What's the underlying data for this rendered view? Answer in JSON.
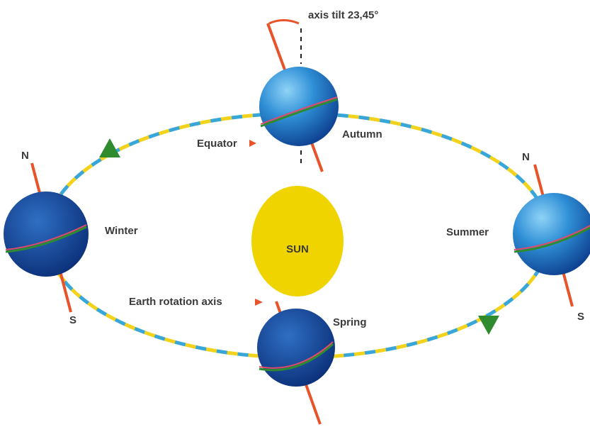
{
  "annotations": {
    "axis_tilt": "axis tilt 23,45°",
    "equator": "Equator",
    "rotation_axis": "Earth rotation axis"
  },
  "sun": "SUN",
  "seasons": {
    "autumn": "Autumn",
    "winter": "Winter",
    "summer": "Summer",
    "spring": "Spring"
  },
  "poles": [
    "N",
    "N",
    "S",
    "S"
  ]
}
